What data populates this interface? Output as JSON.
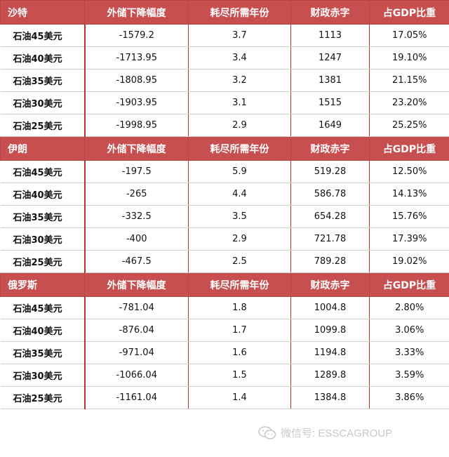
{
  "columns": [
    "外储下降幅度",
    "耗尽所需年份",
    "财政赤字",
    "占GDP比重"
  ],
  "sections": [
    {
      "country": "沙特",
      "rows": [
        {
          "label": "石油45美元",
          "decline": "-1579.2",
          "years": "3.7",
          "deficit": "1113",
          "gdp_share": "17.05%"
        },
        {
          "label": "石油40美元",
          "decline": "-1713.95",
          "years": "3.4",
          "deficit": "1247",
          "gdp_share": "19.10%"
        },
        {
          "label": "石油35美元",
          "decline": "-1808.95",
          "years": "3.2",
          "deficit": "1381",
          "gdp_share": "21.15%"
        },
        {
          "label": "石油30美元",
          "decline": "-1903.95",
          "years": "3.1",
          "deficit": "1515",
          "gdp_share": "23.20%"
        },
        {
          "label": "石油25美元",
          "decline": "-1998.95",
          "years": "2.9",
          "deficit": "1649",
          "gdp_share": "25.25%"
        }
      ]
    },
    {
      "country": "伊朗",
      "rows": [
        {
          "label": "石油45美元",
          "decline": "-197.5",
          "years": "5.9",
          "deficit": "519.28",
          "gdp_share": "12.50%"
        },
        {
          "label": "石油40美元",
          "decline": "-265",
          "years": "4.4",
          "deficit": "586.78",
          "gdp_share": "14.13%"
        },
        {
          "label": "石油35美元",
          "decline": "-332.5",
          "years": "3.5",
          "deficit": "654.28",
          "gdp_share": "15.76%"
        },
        {
          "label": "石油30美元",
          "decline": "-400",
          "years": "2.9",
          "deficit": "721.78",
          "gdp_share": "17.39%"
        },
        {
          "label": "石油25美元",
          "decline": "-467.5",
          "years": "2.5",
          "deficit": "789.28",
          "gdp_share": "19.02%"
        }
      ]
    },
    {
      "country": "俄罗斯",
      "rows": [
        {
          "label": "石油45美元",
          "decline": "-781.04",
          "years": "1.8",
          "deficit": "1004.8",
          "gdp_share": "2.80%"
        },
        {
          "label": "石油40美元",
          "decline": "-876.04",
          "years": "1.7",
          "deficit": "1099.8",
          "gdp_share": "3.06%"
        },
        {
          "label": "石油35美元",
          "decline": "-971.04",
          "years": "1.6",
          "deficit": "1194.8",
          "gdp_share": "3.33%"
        },
        {
          "label": "石油30美元",
          "decline": "-1066.04",
          "years": "1.5",
          "deficit": "1289.8",
          "gdp_share": "3.59%"
        },
        {
          "label": "石油25美元",
          "decline": "-1161.04",
          "years": "1.4",
          "deficit": "1384.8",
          "gdp_share": "3.86%"
        }
      ]
    }
  ],
  "watermark": {
    "text": "微信号: ESSCAGROUP",
    "icon": "wechat-icon"
  },
  "colors": {
    "header_bg": "#c74f4f",
    "header_text": "#ffffff",
    "divider": "#b5342f"
  }
}
